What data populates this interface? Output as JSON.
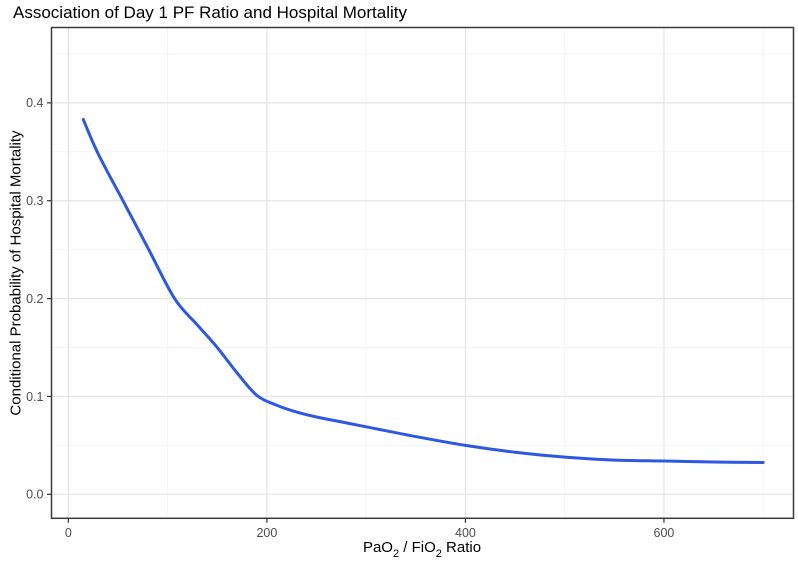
{
  "chart_data": {
    "type": "line",
    "title": "Association of Day 1 PF Ratio and Hospital Mortality",
    "xlabel": "PaO₂ / FiO₂ Ratio",
    "xlabel_parts": [
      {
        "text": "PaO"
      },
      {
        "sub": "2"
      },
      {
        "text": " / FiO"
      },
      {
        "sub": "2"
      },
      {
        "text": " Ratio"
      }
    ],
    "ylabel": "Conditional Probability of Hospital Mortality",
    "xlim": [
      -17,
      730.5
    ],
    "ylim": [
      -0.0245,
      0.477
    ],
    "x_major_ticks": [
      0,
      200,
      400,
      600
    ],
    "x_tick_labels": [
      "0",
      "200",
      "400",
      "600"
    ],
    "x_minor_ticks": [
      100,
      300,
      500,
      700
    ],
    "y_major_ticks": [
      0,
      0.1,
      0.2,
      0.3,
      0.4
    ],
    "y_tick_labels": [
      "0.0",
      "0.1",
      "0.2",
      "0.3",
      "0.4"
    ],
    "y_minor_ticks": [
      0.05,
      0.15,
      0.25,
      0.35,
      0.45
    ],
    "grid": true,
    "legend": false,
    "series": [
      {
        "points": [
          [
            15,
            0.383
          ],
          [
            30,
            0.348
          ],
          [
            55,
            0.3
          ],
          [
            80,
            0.252
          ],
          [
            107,
            0.2
          ],
          [
            130,
            0.173
          ],
          [
            150,
            0.15
          ],
          [
            170,
            0.124
          ],
          [
            190,
            0.101
          ],
          [
            210,
            0.091
          ],
          [
            230,
            0.084
          ],
          [
            250,
            0.079
          ],
          [
            275,
            0.074
          ],
          [
            300,
            0.069
          ],
          [
            350,
            0.059
          ],
          [
            400,
            0.05
          ],
          [
            450,
            0.043
          ],
          [
            500,
            0.038
          ],
          [
            550,
            0.035
          ],
          [
            600,
            0.034
          ],
          [
            650,
            0.033
          ],
          [
            700,
            0.0325
          ]
        ]
      }
    ],
    "colors": {
      "line": "#2E58E0",
      "grid_major": "#E4E4E4",
      "grid_minor": "#F3F3F3",
      "panel_border": "#3A3A3A",
      "tick": "#333333",
      "tick_label": "#4D4D4D",
      "title": "#000000",
      "panel_background": "#FFFFFF"
    }
  }
}
